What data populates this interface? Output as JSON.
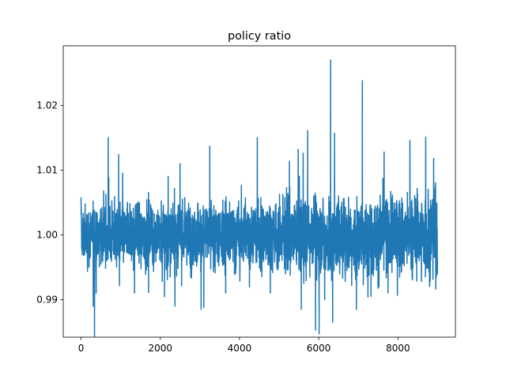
{
  "chart_data": {
    "type": "line",
    "title": "policy ratio",
    "xlabel": "",
    "ylabel": "",
    "xlim": [
      -450,
      9450
    ],
    "ylim": [
      0.9842,
      1.0292
    ],
    "xticks": [
      0,
      2000,
      4000,
      6000,
      8000
    ],
    "xtick_labels": [
      "0",
      "2000",
      "4000",
      "6000",
      "8000"
    ],
    "yticks": [
      0.99,
      1.0,
      1.01,
      1.02
    ],
    "ytick_labels": [
      "0.99",
      "1.00",
      "1.01",
      "1.02"
    ],
    "grid": false,
    "legend": "none",
    "series": [
      {
        "color": "#1f77b4",
        "n_points": 9000,
        "x_start": 0,
        "x_end": 8999,
        "center": 1.0,
        "typical_band": [
          0.996,
          1.004
        ],
        "spikes": [
          {
            "x": 0,
            "y": 1.0058
          },
          {
            "x": 60,
            "y": 0.9975
          },
          {
            "x": 200,
            "y": 0.995
          },
          {
            "x": 340,
            "y": 0.9841
          },
          {
            "x": 380,
            "y": 0.991
          },
          {
            "x": 700,
            "y": 1.0088
          },
          {
            "x": 1050,
            "y": 1.0095
          },
          {
            "x": 1350,
            "y": 0.991
          },
          {
            "x": 2050,
            "y": 0.9928
          },
          {
            "x": 2200,
            "y": 1.009
          },
          {
            "x": 2370,
            "y": 0.989
          },
          {
            "x": 2500,
            "y": 1.011
          },
          {
            "x": 3030,
            "y": 0.9885
          },
          {
            "x": 3100,
            "y": 0.9888
          },
          {
            "x": 3250,
            "y": 1.0137
          },
          {
            "x": 3650,
            "y": 0.991
          },
          {
            "x": 4450,
            "y": 1.015
          },
          {
            "x": 4780,
            "y": 0.991
          },
          {
            "x": 5480,
            "y": 1.0132
          },
          {
            "x": 5560,
            "y": 0.9885
          },
          {
            "x": 5720,
            "y": 1.0161
          },
          {
            "x": 5920,
            "y": 0.9853
          },
          {
            "x": 6010,
            "y": 0.9847
          },
          {
            "x": 6150,
            "y": 0.99
          },
          {
            "x": 6300,
            "y": 1.027
          },
          {
            "x": 6350,
            "y": 0.9865
          },
          {
            "x": 6400,
            "y": 1.0157
          },
          {
            "x": 6950,
            "y": 0.9885
          },
          {
            "x": 7100,
            "y": 1.0238
          },
          {
            "x": 7320,
            "y": 0.9905
          },
          {
            "x": 7650,
            "y": 1.0128
          },
          {
            "x": 7750,
            "y": 0.991
          },
          {
            "x": 8300,
            "y": 1.0146
          },
          {
            "x": 8700,
            "y": 1.0151
          },
          {
            "x": 8800,
            "y": 0.992
          },
          {
            "x": 8900,
            "y": 1.0118
          }
        ]
      }
    ]
  }
}
